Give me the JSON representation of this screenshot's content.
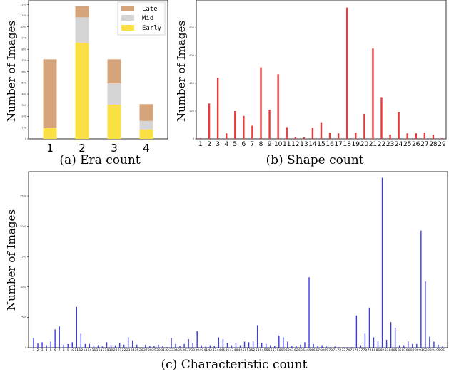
{
  "chart_data": [
    {
      "id": "era",
      "type": "bar",
      "stacked": true,
      "caption": "(a) Era count",
      "ylabel": "Number of Images",
      "categories": [
        "1",
        "2",
        "3",
        "4"
      ],
      "series": [
        {
          "name": "Early",
          "color": "#fbe044",
          "values": [
            95,
            860,
            305,
            85
          ]
        },
        {
          "name": "Mid",
          "color": "#d5d5d5",
          "values": [
            0,
            225,
            190,
            75
          ]
        },
        {
          "name": "Late",
          "color": "#d5a47a",
          "values": [
            615,
            100,
            215,
            150
          ]
        }
      ],
      "legend": [
        "Late",
        "Mid",
        "Early"
      ],
      "legend_position": "top-right",
      "yticks": [
        0,
        100,
        200,
        300,
        400,
        500,
        600,
        700,
        800,
        900,
        1000,
        1100,
        1200
      ],
      "ylim": [
        0,
        1240
      ],
      "grid": false
    },
    {
      "id": "shape",
      "type": "bar",
      "caption": "(b) Shape count",
      "ylabel": "Number of Images",
      "color": "#ea3a3a",
      "categories": [
        "1",
        "2",
        "3",
        "4",
        "5",
        "6",
        "7",
        "8",
        "9",
        "10",
        "11",
        "12",
        "13",
        "14",
        "15",
        "16",
        "17",
        "18",
        "19",
        "20",
        "21",
        "22",
        "23",
        "24",
        "25",
        "26",
        "27",
        "28",
        "29"
      ],
      "values": [
        5,
        255,
        440,
        40,
        200,
        165,
        95,
        515,
        210,
        465,
        85,
        10,
        10,
        80,
        120,
        45,
        40,
        945,
        45,
        180,
        650,
        300,
        30,
        195,
        40,
        40,
        45,
        30,
        5
      ],
      "yticks": [
        0,
        200,
        400,
        600,
        800
      ],
      "ylim": [
        0,
        1000
      ],
      "grid": false
    },
    {
      "id": "characteristic",
      "type": "bar",
      "caption": "(c)  Characteristic count",
      "ylabel": "Number of Images",
      "color": "#3a3ae0",
      "categories": [
        "1",
        "2",
        "3",
        "4",
        "5",
        "6",
        "7",
        "8",
        "9",
        "10",
        "11",
        "12",
        "13",
        "14",
        "15",
        "16",
        "17",
        "18",
        "19",
        "20",
        "21",
        "22",
        "23",
        "24",
        "25",
        "26",
        "27",
        "28",
        "29",
        "30",
        "31",
        "32",
        "33",
        "34",
        "35",
        "36",
        "37",
        "38",
        "39",
        "40",
        "41",
        "42",
        "43",
        "44",
        "45",
        "46",
        "47",
        "48",
        "49",
        "50",
        "51",
        "52",
        "53",
        "54",
        "55",
        "56",
        "57",
        "58",
        "59",
        "60",
        "61",
        "62",
        "63",
        "64",
        "65",
        "66",
        "67",
        "68",
        "69",
        "70",
        "71",
        "72",
        "73",
        "74",
        "75",
        "76",
        "77",
        "78",
        "79",
        "80",
        "81",
        "82",
        "83",
        "84",
        "85",
        "86",
        "87",
        "88",
        "89",
        "90",
        "91",
        "92",
        "93",
        "94",
        "95",
        "96"
      ],
      "values": [
        160,
        70,
        90,
        40,
        100,
        300,
        350,
        50,
        60,
        90,
        670,
        230,
        60,
        60,
        40,
        40,
        20,
        90,
        50,
        40,
        80,
        50,
        170,
        120,
        50,
        10,
        50,
        30,
        30,
        50,
        30,
        10,
        160,
        60,
        30,
        60,
        140,
        80,
        270,
        40,
        30,
        40,
        30,
        170,
        140,
        80,
        40,
        80,
        40,
        100,
        90,
        100,
        370,
        80,
        60,
        40,
        30,
        200,
        170,
        100,
        30,
        30,
        50,
        90,
        1160,
        60,
        30,
        40,
        20,
        10,
        20,
        10,
        10,
        10,
        10,
        530,
        40,
        230,
        660,
        170,
        100,
        2800,
        130,
        420,
        330,
        40,
        40,
        100,
        60,
        60,
        1930,
        1090,
        180,
        100,
        50,
        20
      ],
      "yticks": [
        0,
        500,
        1000,
        1500,
        2000,
        2500
      ],
      "ylim": [
        0,
        2900
      ],
      "grid": false
    }
  ]
}
